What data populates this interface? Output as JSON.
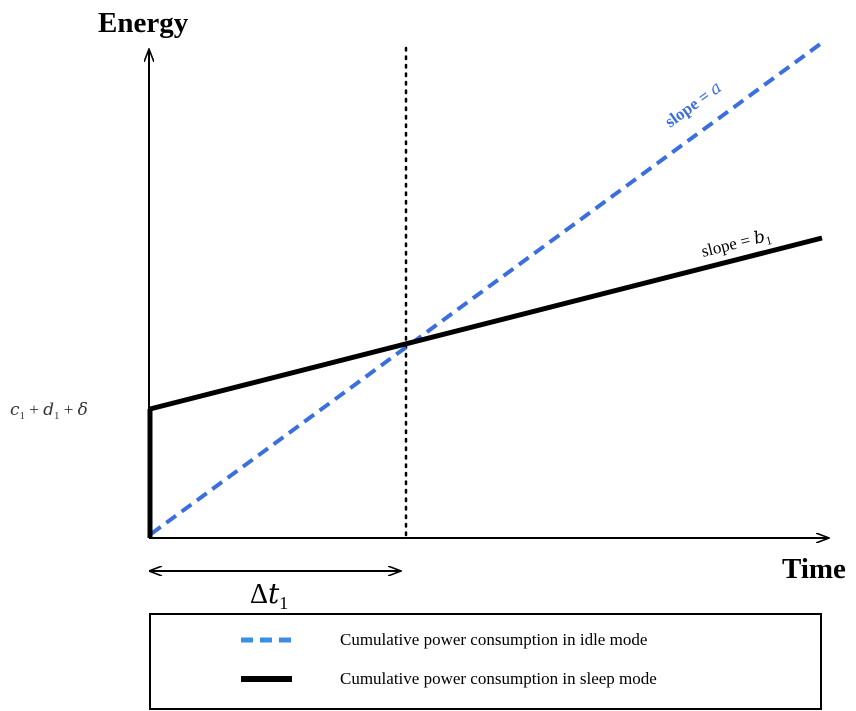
{
  "axes": {
    "y_label": "Energy",
    "x_label": "Time"
  },
  "lines": {
    "idle": {
      "slope_text": "slope = ",
      "slope_symbol": "a",
      "color": "#3b6fe0"
    },
    "sleep": {
      "slope_text": "slope = ",
      "slope_symbol": "b",
      "slope_subscript": "1",
      "color": "#000000"
    }
  },
  "intercept_label": {
    "c": "c",
    "c_sub": "1",
    "plus1": " + ",
    "d": "d",
    "d_sub": "1",
    "plus2": " + ",
    "delta": "δ"
  },
  "delta_t": {
    "symbol": "Δ",
    "t": "t",
    "sub": "1"
  },
  "legend": {
    "items": [
      {
        "label": "Cumulative power consumption in idle mode",
        "style": "dashed",
        "color": "#3b8ee8"
      },
      {
        "label": "Cumulative power consumption in sleep mode",
        "style": "solid",
        "color": "#000000"
      }
    ]
  }
}
